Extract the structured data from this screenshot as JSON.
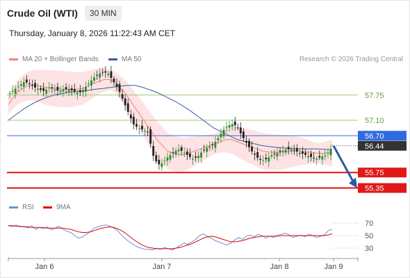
{
  "header": {
    "title": "Crude Oil (WTI)",
    "timeframe": "30 MIN"
  },
  "timestamp": "Thursday, January 8, 2026 11:22:43 AM CET",
  "legend": {
    "ma20_label": "MA 20 + Bollinger Bands",
    "ma50_label": "MA 50",
    "ma20_color": "#f08080",
    "ma50_color": "#3a5ba0"
  },
  "research_label": "Research © 2026 Trading Central",
  "rsi_legend": {
    "rsi_label": "RSI",
    "ma_label": "9MA",
    "rsi_color": "#6a8fd8",
    "ma_color": "#e00000"
  },
  "chart_data": {
    "type": "candlestick",
    "x_labels": [
      "Jan 6",
      "Jan 7",
      "Jan 8",
      "Jan 9"
    ],
    "y_range": [
      55.0,
      58.5
    ],
    "levels": [
      {
        "label": "57.75",
        "value": 57.75,
        "kind": "resistance-green"
      },
      {
        "label": "57.10",
        "value": 57.1,
        "kind": "resistance-green"
      },
      {
        "label": "56.70",
        "value": 56.7,
        "kind": "pivot-blue"
      },
      {
        "label": "55.75",
        "value": 55.75,
        "kind": "support-red"
      },
      {
        "label": "55.35",
        "value": 55.35,
        "kind": "support-red"
      }
    ],
    "last_price": {
      "label": "56.44",
      "value": 56.44
    },
    "forecast_target": 55.35,
    "close_path": [
      57.8,
      57.9,
      58.0,
      58.1,
      58.05,
      57.95,
      57.9,
      57.85,
      57.95,
      57.9,
      57.85,
      57.9,
      57.9,
      57.85,
      57.8,
      57.9,
      58.05,
      58.2,
      58.3,
      58.35,
      58.3,
      58.1,
      57.9,
      57.6,
      57.3,
      57.0,
      56.9,
      56.85,
      56.8,
      56.2,
      55.95,
      56.0,
      56.15,
      56.25,
      56.35,
      56.3,
      56.2,
      56.1,
      56.15,
      56.3,
      56.4,
      56.45,
      56.6,
      56.8,
      56.95,
      57.0,
      56.95,
      56.7,
      56.5,
      56.3,
      56.15,
      56.05,
      56.1,
      56.2,
      56.25,
      56.3,
      56.35,
      56.35,
      56.3,
      56.25,
      56.2,
      56.15,
      56.1,
      56.15,
      56.2,
      56.35
    ],
    "ma20_path": [
      57.5,
      57.7,
      57.85,
      57.95,
      58.0,
      58.0,
      57.98,
      57.95,
      57.93,
      57.92,
      57.9,
      57.9,
      57.9,
      57.9,
      57.92,
      57.98,
      58.05,
      58.1,
      58.15,
      58.15,
      58.1,
      57.95,
      57.8,
      57.6,
      57.4,
      57.2,
      57.0,
      56.8,
      56.6,
      56.45,
      56.3,
      56.25,
      56.22,
      56.2,
      56.25,
      56.3,
      56.35,
      56.4,
      56.45,
      56.5,
      56.55,
      56.6,
      56.6,
      56.55,
      56.5,
      56.45,
      56.4,
      56.35,
      56.3,
      56.28,
      56.27,
      56.27,
      56.28,
      56.3,
      56.3,
      56.3,
      56.28,
      56.27,
      56.25,
      56.25,
      56.25,
      56.25
    ],
    "ma50_path": [
      57.1,
      57.25,
      57.4,
      57.52,
      57.62,
      57.7,
      57.76,
      57.8,
      57.83,
      57.85,
      57.87,
      57.9,
      57.92,
      57.95,
      57.97,
      58.0,
      58.0,
      57.95,
      57.88,
      57.8,
      57.7,
      57.6,
      57.48,
      57.35,
      57.2,
      57.05,
      56.9,
      56.8,
      56.7,
      56.6,
      56.55,
      56.5,
      56.45,
      56.42,
      56.4,
      56.38,
      56.37,
      56.36,
      56.36,
      56.36,
      56.35,
      56.34
    ],
    "rsi_ticks": [
      "70",
      "50",
      "30"
    ],
    "rsi_range": [
      20,
      80
    ],
    "rsi_path": [
      66,
      64,
      67,
      64,
      65,
      62,
      66,
      60,
      63,
      61,
      64,
      59,
      62,
      65,
      60,
      57,
      55,
      50,
      46,
      48,
      52,
      56,
      62,
      64,
      66,
      67,
      65,
      62,
      58,
      51,
      45,
      40,
      36,
      32,
      30,
      28,
      28,
      27,
      30,
      28,
      31,
      29,
      27,
      30,
      34,
      38,
      36,
      40,
      44,
      50,
      53,
      49,
      46,
      42,
      40,
      37,
      35,
      38,
      43,
      47,
      44,
      49,
      51,
      48,
      52,
      50,
      46,
      49,
      47,
      51,
      52,
      54,
      51,
      47,
      49,
      51,
      48,
      52,
      50,
      47,
      49,
      51,
      58,
      60
    ],
    "rsi_ma_path": [
      66,
      66,
      65,
      65,
      64,
      64,
      63,
      63,
      63,
      63,
      62,
      62,
      62,
      62,
      62,
      61,
      60,
      58,
      56,
      55,
      55,
      56,
      58,
      60,
      62,
      63,
      64,
      63,
      61,
      58,
      54,
      49,
      44,
      40,
      36,
      33,
      31,
      30,
      29,
      29,
      29,
      29,
      29,
      30,
      31,
      33,
      35,
      37,
      40,
      43,
      46,
      48,
      49,
      48,
      46,
      44,
      42,
      40,
      40,
      41,
      42,
      44,
      46,
      47,
      48,
      49,
      49,
      49,
      49,
      49,
      50,
      50,
      50,
      50,
      50,
      50,
      50,
      50,
      50,
      50,
      50,
      50,
      51,
      53
    ]
  }
}
